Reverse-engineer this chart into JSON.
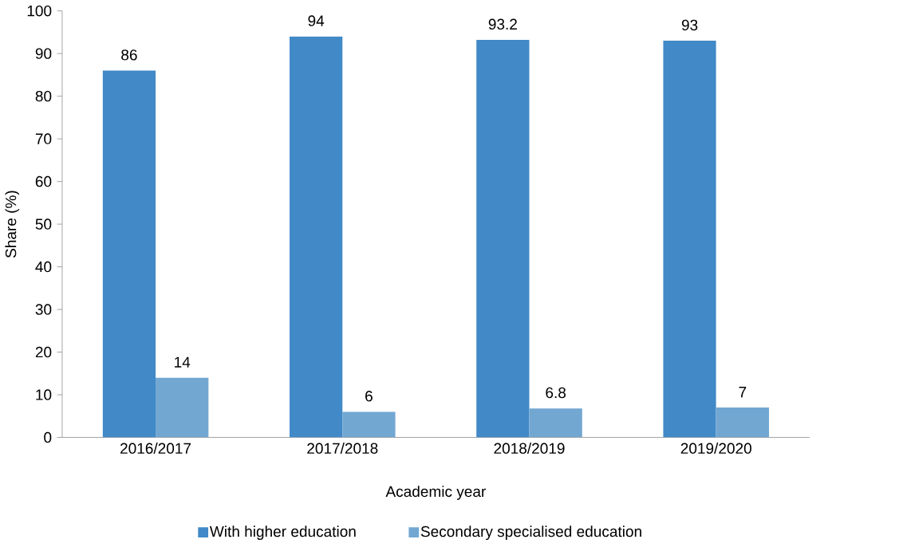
{
  "chart_data": {
    "type": "bar",
    "xlabel": "Academic year",
    "ylabel": "Share (%)",
    "categories": [
      "2016/2017",
      "2017/2018",
      "2018/2019",
      "2019/2020"
    ],
    "series": [
      {
        "name": "With higher education",
        "color": "#4189c7",
        "values": [
          86,
          94,
          93.2,
          93
        ]
      },
      {
        "name": "Secondary specialised education",
        "color": "#72a7d2",
        "values": [
          14,
          6,
          6.8,
          7
        ]
      }
    ],
    "ylim": [
      0,
      100
    ],
    "yticks": [
      0,
      10,
      20,
      30,
      40,
      50,
      60,
      70,
      80,
      90,
      100
    ],
    "data_labels": true,
    "grid": false,
    "legend": "bottom"
  }
}
